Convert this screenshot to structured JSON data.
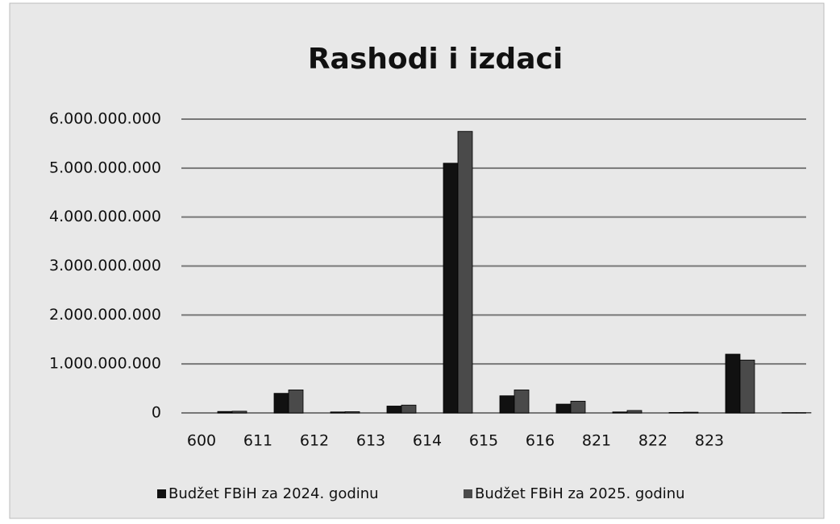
{
  "chart_data": {
    "type": "bar",
    "title": "Rashodi i izdaci",
    "categories": [
      "600",
      "611",
      "612",
      "613",
      "614",
      "615",
      "616",
      "821",
      "822",
      "823",
      null
    ],
    "series": [
      {
        "name": "Budžet FBiH za 2024. godinu",
        "color": "#111111",
        "values": [
          30000000,
          400000000,
          20000000,
          140000000,
          5100000000,
          350000000,
          180000000,
          20000000,
          10000000,
          1200000000,
          5000000
        ]
      },
      {
        "name": "Budžet FBiH za 2025. godinu",
        "color": "#4a4a4a",
        "values": [
          35000000,
          470000000,
          25000000,
          160000000,
          5750000000,
          470000000,
          240000000,
          50000000,
          15000000,
          1080000000,
          5000000
        ]
      }
    ],
    "ylim": [
      0,
      6000000000
    ],
    "yticks": [
      {
        "value": 0,
        "label": "0"
      },
      {
        "value": 1000000000,
        "label": "1.000.000.000"
      },
      {
        "value": 2000000000,
        "label": "2.000.000.000"
      },
      {
        "value": 3000000000,
        "label": "3.000.000.000"
      },
      {
        "value": 4000000000,
        "label": "4.000.000.000"
      },
      {
        "value": 5000000000,
        "label": "5.000.000.000"
      },
      {
        "value": 6000000000,
        "label": "6.000.000.000"
      }
    ],
    "grid": true,
    "legend": "bottom"
  }
}
